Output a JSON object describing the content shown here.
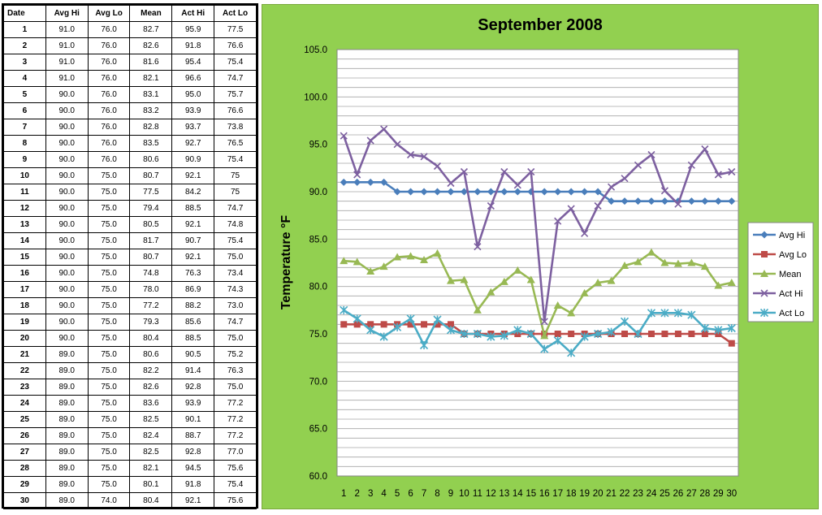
{
  "table": {
    "headers": [
      "Date",
      "Avg Hi",
      "Avg Lo",
      "Mean",
      "Act Hi",
      "Act Lo"
    ],
    "rows": [
      [
        "1",
        "91.0",
        "76.0",
        "82.7",
        "95.9",
        "77.5"
      ],
      [
        "2",
        "91.0",
        "76.0",
        "82.6",
        "91.8",
        "76.6"
      ],
      [
        "3",
        "91.0",
        "76.0",
        "81.6",
        "95.4",
        "75.4"
      ],
      [
        "4",
        "91.0",
        "76.0",
        "82.1",
        "96.6",
        "74.7"
      ],
      [
        "5",
        "90.0",
        "76.0",
        "83.1",
        "95.0",
        "75.7"
      ],
      [
        "6",
        "90.0",
        "76.0",
        "83.2",
        "93.9",
        "76.6"
      ],
      [
        "7",
        "90.0",
        "76.0",
        "82.8",
        "93.7",
        "73.8"
      ],
      [
        "8",
        "90.0",
        "76.0",
        "83.5",
        "92.7",
        "76.5"
      ],
      [
        "9",
        "90.0",
        "76.0",
        "80.6",
        "90.9",
        "75.4"
      ],
      [
        "10",
        "90.0",
        "75.0",
        "80.7",
        "92.1",
        "75"
      ],
      [
        "11",
        "90.0",
        "75.0",
        "77.5",
        "84.2",
        "75"
      ],
      [
        "12",
        "90.0",
        "75.0",
        "79.4",
        "88.5",
        "74.7"
      ],
      [
        "13",
        "90.0",
        "75.0",
        "80.5",
        "92.1",
        "74.8"
      ],
      [
        "14",
        "90.0",
        "75.0",
        "81.7",
        "90.7",
        "75.4"
      ],
      [
        "15",
        "90.0",
        "75.0",
        "80.7",
        "92.1",
        "75.0"
      ],
      [
        "16",
        "90.0",
        "75.0",
        "74.8",
        "76.3",
        "73.4"
      ],
      [
        "17",
        "90.0",
        "75.0",
        "78.0",
        "86.9",
        "74.3"
      ],
      [
        "18",
        "90.0",
        "75.0",
        "77.2",
        "88.2",
        "73.0"
      ],
      [
        "19",
        "90.0",
        "75.0",
        "79.3",
        "85.6",
        "74.7"
      ],
      [
        "20",
        "90.0",
        "75.0",
        "80.4",
        "88.5",
        "75.0"
      ],
      [
        "21",
        "89.0",
        "75.0",
        "80.6",
        "90.5",
        "75.2"
      ],
      [
        "22",
        "89.0",
        "75.0",
        "82.2",
        "91.4",
        "76.3"
      ],
      [
        "23",
        "89.0",
        "75.0",
        "82.6",
        "92.8",
        "75.0"
      ],
      [
        "24",
        "89.0",
        "75.0",
        "83.6",
        "93.9",
        "77.2"
      ],
      [
        "25",
        "89.0",
        "75.0",
        "82.5",
        "90.1",
        "77.2"
      ],
      [
        "26",
        "89.0",
        "75.0",
        "82.4",
        "88.7",
        "77.2"
      ],
      [
        "27",
        "89.0",
        "75.0",
        "82.5",
        "92.8",
        "77.0"
      ],
      [
        "28",
        "89.0",
        "75.0",
        "82.1",
        "94.5",
        "75.6"
      ],
      [
        "29",
        "89.0",
        "75.0",
        "80.1",
        "91.8",
        "75.4"
      ],
      [
        "30",
        "89.0",
        "74.0",
        "80.4",
        "92.1",
        "75.6"
      ]
    ]
  },
  "colors": {
    "chart_background": "#92d050",
    "plot_background": "#ffffff",
    "gridline": "#a6a6a6"
  },
  "chart_data": {
    "type": "line",
    "title": "September 2008",
    "xlabel": "",
    "ylabel": "Temperature °F",
    "x": [
      1,
      2,
      3,
      4,
      5,
      6,
      7,
      8,
      9,
      10,
      11,
      12,
      13,
      14,
      15,
      16,
      17,
      18,
      19,
      20,
      21,
      22,
      23,
      24,
      25,
      26,
      27,
      28,
      29,
      30
    ],
    "ylim": [
      60,
      105
    ],
    "yticks": [
      "60.0",
      "65.0",
      "70.0",
      "75.0",
      "80.0",
      "85.0",
      "90.0",
      "95.0",
      "100.0",
      "105.0"
    ],
    "grid": true,
    "legend_position": "right",
    "series": [
      {
        "name": "Avg Hi",
        "color": "#4a7ebb",
        "marker": "diamond",
        "values": [
          91,
          91,
          91,
          91,
          90,
          90,
          90,
          90,
          90,
          90,
          90,
          90,
          90,
          90,
          90,
          90,
          90,
          90,
          90,
          90,
          89,
          89,
          89,
          89,
          89,
          89,
          89,
          89,
          89,
          89
        ]
      },
      {
        "name": "Avg Lo",
        "color": "#be4b48",
        "marker": "square",
        "values": [
          76,
          76,
          76,
          76,
          76,
          76,
          76,
          76,
          76,
          75,
          75,
          75,
          75,
          75,
          75,
          75,
          75,
          75,
          75,
          75,
          75,
          75,
          75,
          75,
          75,
          75,
          75,
          75,
          75,
          74
        ]
      },
      {
        "name": "Mean",
        "color": "#98b954",
        "marker": "triangle",
        "values": [
          82.7,
          82.6,
          81.6,
          82.1,
          83.1,
          83.2,
          82.8,
          83.5,
          80.6,
          80.7,
          77.5,
          79.4,
          80.5,
          81.7,
          80.7,
          74.8,
          78.0,
          77.2,
          79.3,
          80.4,
          80.6,
          82.2,
          82.6,
          83.6,
          82.5,
          82.4,
          82.5,
          82.1,
          80.1,
          80.4
        ]
      },
      {
        "name": "Act Hi",
        "color": "#7d60a0",
        "marker": "x",
        "values": [
          95.9,
          91.8,
          95.4,
          96.6,
          95.0,
          93.9,
          93.7,
          92.7,
          90.9,
          92.1,
          84.2,
          88.5,
          92.1,
          90.7,
          92.1,
          76.3,
          86.9,
          88.2,
          85.6,
          88.5,
          90.5,
          91.4,
          92.8,
          93.9,
          90.1,
          88.7,
          92.8,
          94.5,
          91.8,
          92.1
        ]
      },
      {
        "name": "Act Lo",
        "color": "#4bacc6",
        "marker": "star",
        "values": [
          77.5,
          76.6,
          75.4,
          74.7,
          75.7,
          76.6,
          73.8,
          76.5,
          75.4,
          75,
          75,
          74.7,
          74.8,
          75.4,
          75.0,
          73.4,
          74.3,
          73.0,
          74.7,
          75.0,
          75.2,
          76.3,
          75.0,
          77.2,
          77.2,
          77.2,
          77.0,
          75.6,
          75.4,
          75.6
        ]
      }
    ]
  }
}
